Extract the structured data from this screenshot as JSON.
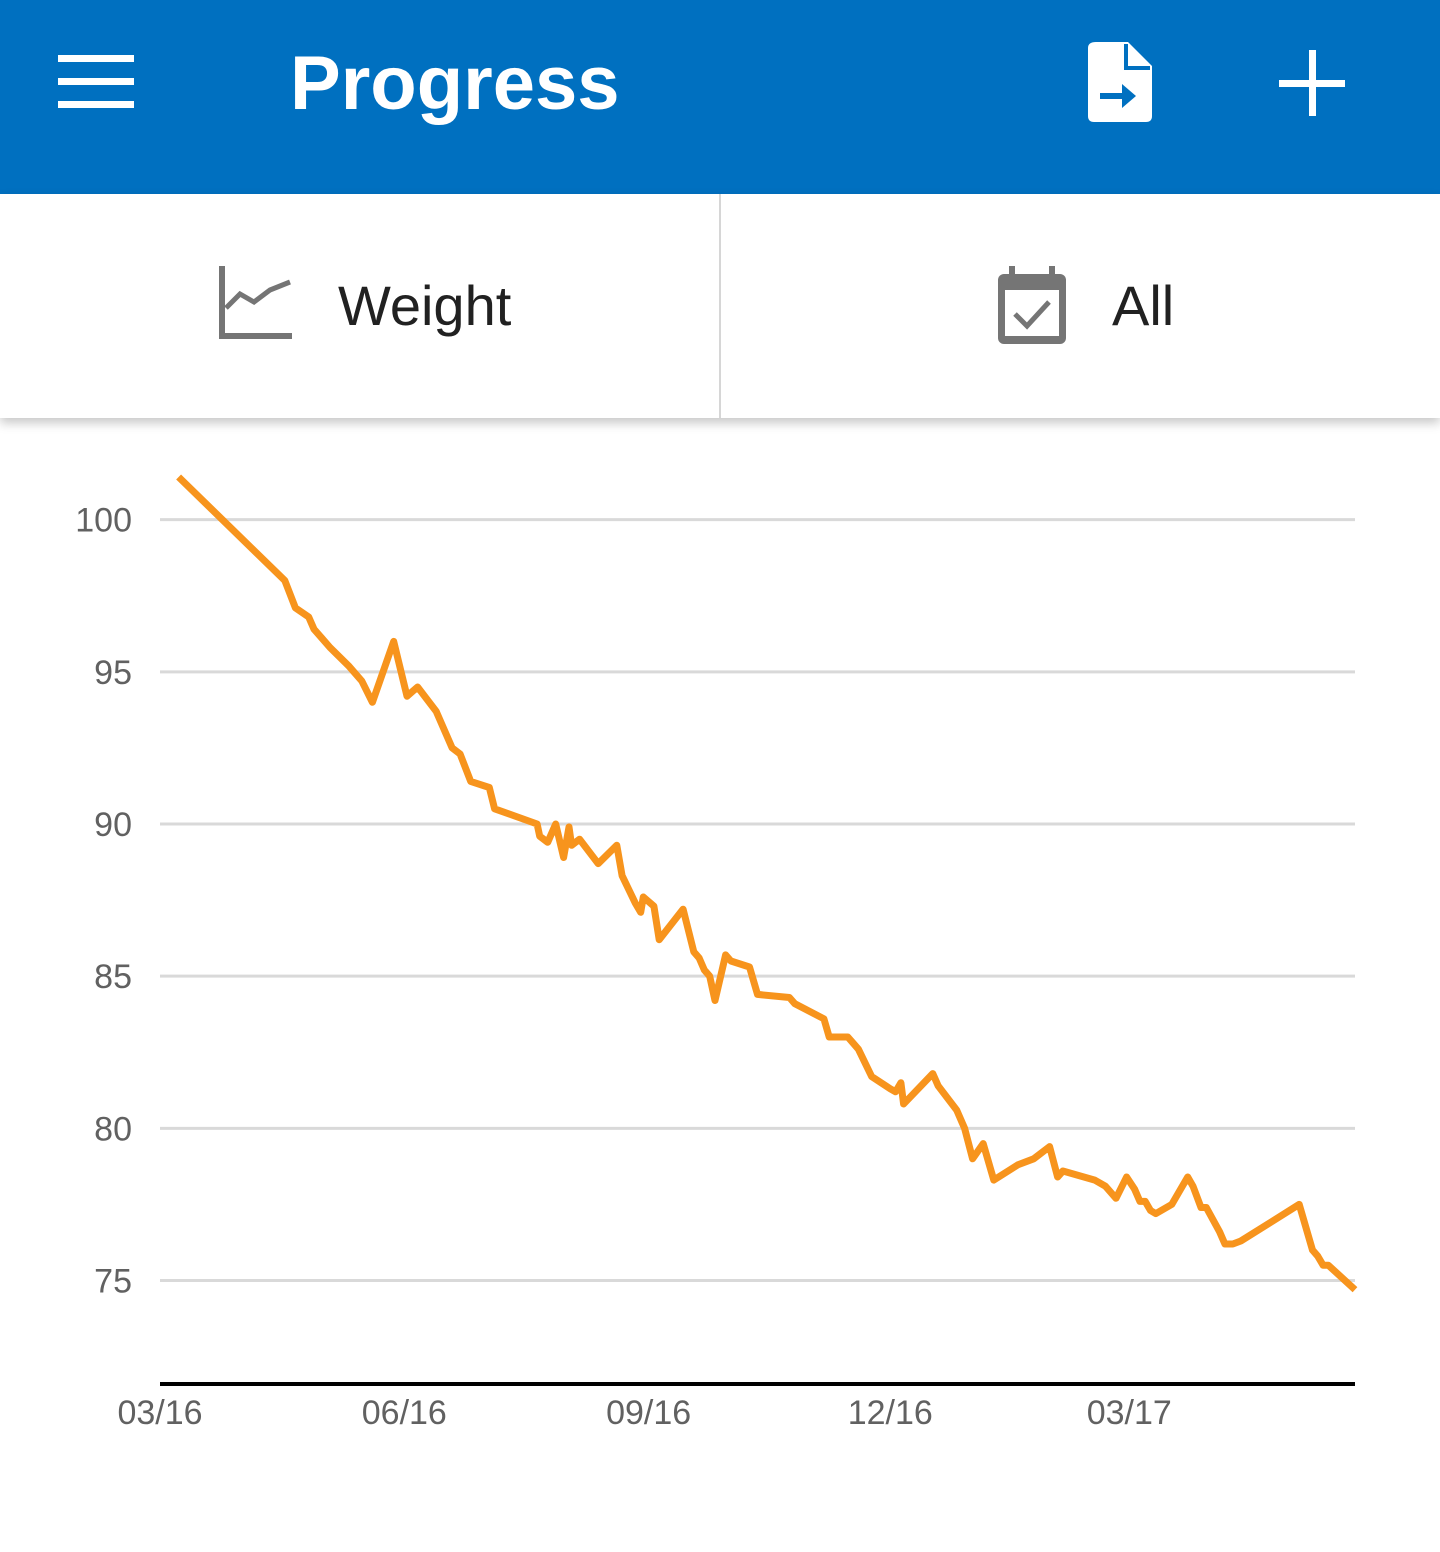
{
  "app_bar": {
    "title": "Progress",
    "menu_icon": "menu-icon",
    "export_icon": "file-export-icon",
    "add_icon": "add-icon",
    "background": "#0070C0"
  },
  "selectors": {
    "metric": {
      "label": "Weight",
      "icon": "line-chart-icon"
    },
    "range": {
      "label": "All",
      "icon": "calendar-check-icon"
    }
  },
  "chart_data": {
    "type": "line",
    "title": "",
    "xlabel": "",
    "ylabel": "",
    "xlim": [
      "2016-03-01",
      "2017-05-25"
    ],
    "ylim": [
      71.6,
      101.5
    ],
    "y_ticks": [
      75,
      80,
      85,
      90,
      95,
      100
    ],
    "x_ticks": [
      {
        "date": "2016-03-01",
        "label": "03/16"
      },
      {
        "date": "2016-06-01",
        "label": "06/16"
      },
      {
        "date": "2016-09-01",
        "label": "09/16"
      },
      {
        "date": "2016-12-01",
        "label": "12/16"
      },
      {
        "date": "2017-03-01",
        "label": "03/17"
      }
    ],
    "grid": true,
    "line_color": "#F7941D",
    "series": [
      {
        "points": [
          [
            "2016-03-08",
            101.4
          ],
          [
            "2016-04-17",
            98.0
          ],
          [
            "2016-04-21",
            97.1
          ],
          [
            "2016-04-26",
            96.8
          ],
          [
            "2016-04-28",
            96.4
          ],
          [
            "2016-05-01",
            96.1
          ],
          [
            "2016-05-04",
            95.8
          ],
          [
            "2016-05-11",
            95.2
          ],
          [
            "2016-05-16",
            94.7
          ],
          [
            "2016-05-20",
            94.0
          ],
          [
            "2016-05-28",
            96.0
          ],
          [
            "2016-06-02",
            94.2
          ],
          [
            "2016-06-06",
            94.5
          ],
          [
            "2016-06-13",
            93.7
          ],
          [
            "2016-06-19",
            92.5
          ],
          [
            "2016-06-22",
            92.3
          ],
          [
            "2016-06-26",
            91.4
          ],
          [
            "2016-07-03",
            91.2
          ],
          [
            "2016-07-05",
            90.5
          ],
          [
            "2016-07-21",
            90.0
          ],
          [
            "2016-07-22",
            89.6
          ],
          [
            "2016-07-25",
            89.4
          ],
          [
            "2016-07-28",
            90.0
          ],
          [
            "2016-07-31",
            88.9
          ],
          [
            "2016-08-02",
            89.9
          ],
          [
            "2016-08-03",
            89.3
          ],
          [
            "2016-08-06",
            89.5
          ],
          [
            "2016-08-13",
            88.7
          ],
          [
            "2016-08-20",
            89.3
          ],
          [
            "2016-08-22",
            88.3
          ],
          [
            "2016-08-27",
            87.4
          ],
          [
            "2016-08-29",
            87.1
          ],
          [
            "2016-08-30",
            87.6
          ],
          [
            "2016-09-03",
            87.3
          ],
          [
            "2016-09-05",
            86.2
          ],
          [
            "2016-09-14",
            87.2
          ],
          [
            "2016-09-18",
            85.8
          ],
          [
            "2016-09-20",
            85.6
          ],
          [
            "2016-09-22",
            85.2
          ],
          [
            "2016-09-24",
            85.0
          ],
          [
            "2016-09-26",
            84.2
          ],
          [
            "2016-09-30",
            85.7
          ],
          [
            "2016-10-02",
            85.5
          ],
          [
            "2016-10-09",
            85.3
          ],
          [
            "2016-10-12",
            84.4
          ],
          [
            "2016-10-24",
            84.3
          ],
          [
            "2016-10-26",
            84.1
          ],
          [
            "2016-11-06",
            83.6
          ],
          [
            "2016-11-08",
            83.0
          ],
          [
            "2016-11-15",
            83.0
          ],
          [
            "2016-11-17",
            82.8
          ],
          [
            "2016-11-19",
            82.6
          ],
          [
            "2016-11-24",
            81.7
          ],
          [
            "2016-12-01",
            81.3
          ],
          [
            "2016-12-03",
            81.2
          ],
          [
            "2016-12-05",
            81.5
          ],
          [
            "2016-12-06",
            80.8
          ],
          [
            "2016-12-17",
            81.8
          ],
          [
            "2016-12-19",
            81.4
          ],
          [
            "2016-12-26",
            80.6
          ],
          [
            "2016-12-29",
            80.0
          ],
          [
            "2017-01-01",
            79.0
          ],
          [
            "2017-01-05",
            79.5
          ],
          [
            "2017-01-09",
            78.3
          ],
          [
            "2017-01-18",
            78.8
          ],
          [
            "2017-01-24",
            79.0
          ],
          [
            "2017-01-30",
            79.4
          ],
          [
            "2017-02-02",
            78.4
          ],
          [
            "2017-02-04",
            78.6
          ],
          [
            "2017-02-16",
            78.3
          ],
          [
            "2017-02-20",
            78.1
          ],
          [
            "2017-02-24",
            77.7
          ],
          [
            "2017-02-28",
            78.4
          ],
          [
            "2017-03-03",
            78.0
          ],
          [
            "2017-03-05",
            77.6
          ],
          [
            "2017-03-07",
            77.6
          ],
          [
            "2017-03-09",
            77.3
          ],
          [
            "2017-03-11",
            77.2
          ],
          [
            "2017-03-17",
            77.5
          ],
          [
            "2017-03-23",
            78.4
          ],
          [
            "2017-03-25",
            78.1
          ],
          [
            "2017-03-28",
            77.4
          ],
          [
            "2017-03-30",
            77.4
          ],
          [
            "2017-04-04",
            76.6
          ],
          [
            "2017-04-06",
            76.2
          ],
          [
            "2017-04-09",
            76.2
          ],
          [
            "2017-04-12",
            76.3
          ],
          [
            "2017-05-04",
            77.5
          ],
          [
            "2017-05-09",
            76.0
          ],
          [
            "2017-05-11",
            75.8
          ],
          [
            "2017-05-13",
            75.5
          ],
          [
            "2017-05-15",
            75.5
          ],
          [
            "2017-05-25",
            74.7
          ]
        ]
      }
    ]
  }
}
